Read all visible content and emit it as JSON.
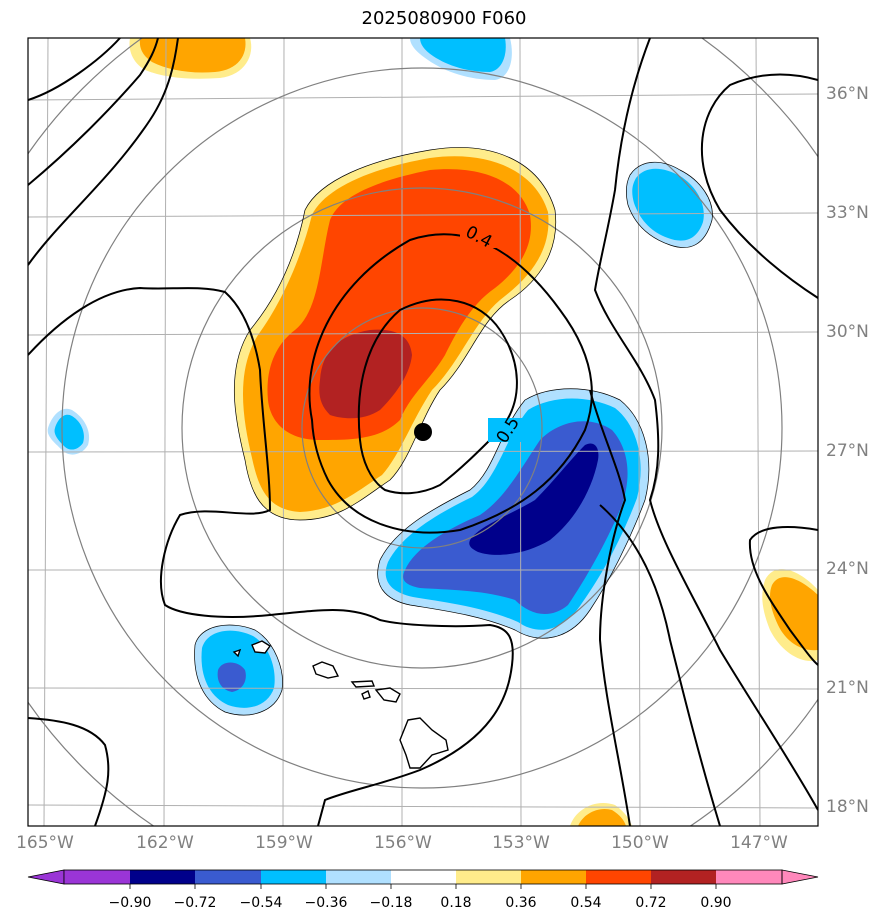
{
  "title": "2025080900 F060",
  "latitude_labels": [
    "36°N",
    "33°N",
    "30°N",
    "27°N",
    "24°N",
    "21°N",
    "18°N"
  ],
  "longitude_labels": [
    "165°W",
    "162°W",
    "159°W",
    "156°W",
    "153°W",
    "150°W",
    "147°W"
  ],
  "contour_labels": [
    "0.4",
    "0.5"
  ],
  "colorbar": {
    "ticks": [
      "−0.90",
      "−0.72",
      "−0.54",
      "−0.36",
      "−0.18",
      "0.18",
      "0.36",
      "0.54",
      "0.72",
      "0.90"
    ],
    "colors": [
      "#9a35d6",
      "#00008b",
      "#3a5bd0",
      "#00bfff",
      "#b0e0ff",
      "#ffffff",
      "#ffec8b",
      "#ffa500",
      "#ff4500",
      "#b22222",
      "#ff88bb"
    ]
  },
  "colors": {
    "axis_label": "#808080",
    "grid": "#b0b0b0",
    "range_rings": "#808080",
    "contour": "#000000",
    "center_marker": "#000000"
  },
  "map_markers": [
    "center-marker"
  ]
}
